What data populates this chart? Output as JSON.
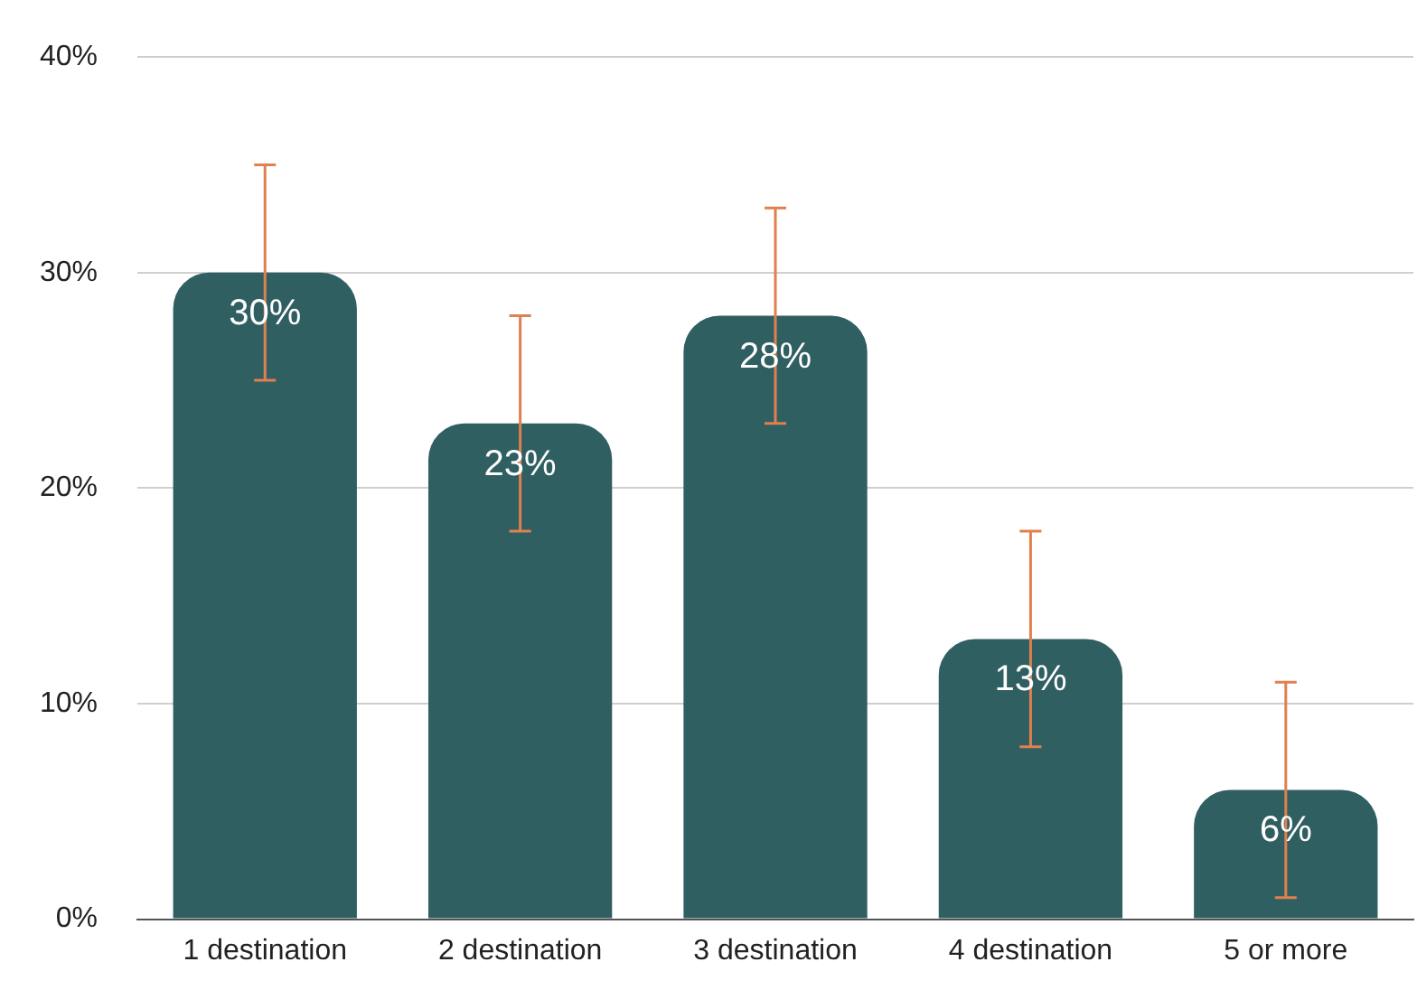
{
  "chart_data": {
    "type": "bar",
    "categories": [
      "1 destination",
      "2 destination",
      "3 destination",
      "4 destination",
      "5 or more"
    ],
    "values": [
      30,
      23,
      28,
      13,
      6
    ],
    "color": "#305f62",
    "errors": [
      5,
      5,
      5,
      5,
      5
    ],
    "value_labels": [
      "30%",
      "23%",
      "28%",
      "13%",
      "6%"
    ],
    "ylim": [
      0,
      40
    ],
    "yticks": [
      {
        "value": 0,
        "label": "0%"
      },
      {
        "value": 10,
        "label": "10%"
      },
      {
        "value": 20,
        "label": "20%"
      },
      {
        "value": 30,
        "label": "30%"
      },
      {
        "value": 40,
        "label": "40%"
      }
    ],
    "grid": "y",
    "legend": false
  }
}
